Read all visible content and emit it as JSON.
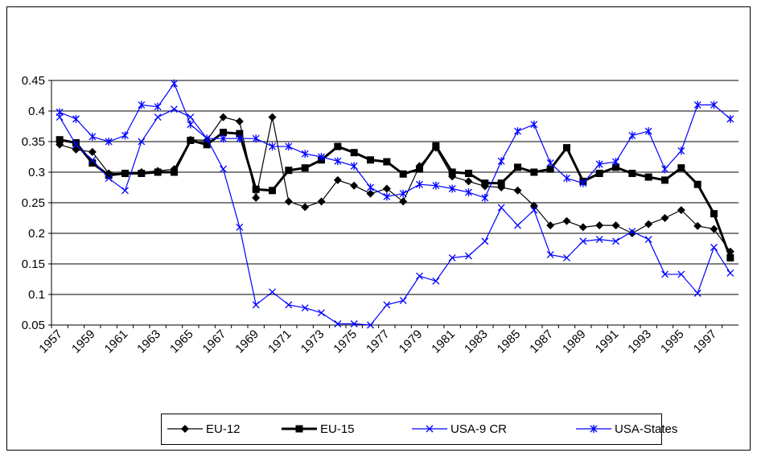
{
  "chart_data": {
    "type": "line",
    "categories": [
      "1957",
      null,
      "1959",
      null,
      "1961",
      null,
      "1963",
      null,
      "1965",
      null,
      "1967",
      null,
      "1969",
      null,
      "1971",
      null,
      "1973",
      null,
      "1975",
      null,
      "1977",
      null,
      "1979",
      null,
      "1981",
      null,
      "1983",
      null,
      "1985",
      null,
      "1987",
      null,
      "1989",
      null,
      "1991",
      null,
      "1993",
      null,
      "1995",
      null,
      "1997",
      null
    ],
    "series": [
      {
        "name": "EU-12",
        "color": "#000000",
        "marker": "diamond",
        "width": 1.2,
        "values": [
          0.345,
          0.337,
          0.333,
          0.298,
          0.298,
          0.3,
          0.302,
          0.305,
          0.353,
          0.352,
          0.39,
          0.383,
          0.258,
          0.39,
          0.252,
          0.243,
          0.252,
          0.287,
          0.278,
          0.265,
          0.273,
          0.252,
          0.31,
          0.34,
          0.293,
          0.285,
          0.277,
          0.275,
          0.27,
          0.245,
          0.213,
          0.22,
          0.21,
          0.213,
          0.213,
          0.2,
          0.215,
          0.225,
          0.238,
          0.212,
          0.207,
          0.17
        ]
      },
      {
        "name": "EU-15",
        "color": "#000000",
        "marker": "square",
        "width": 3,
        "values": [
          0.353,
          0.348,
          0.315,
          0.295,
          0.298,
          0.298,
          0.3,
          0.3,
          0.352,
          0.345,
          0.365,
          0.363,
          0.272,
          0.27,
          0.303,
          0.307,
          0.32,
          0.342,
          0.332,
          0.32,
          0.317,
          0.297,
          0.305,
          0.343,
          0.3,
          0.298,
          0.282,
          0.282,
          0.308,
          0.3,
          0.305,
          0.34,
          0.285,
          0.298,
          0.308,
          0.298,
          0.292,
          0.287,
          0.307,
          0.28,
          0.232,
          0.16
        ]
      },
      {
        "name": "USA-9 CR",
        "color": "#0000ff",
        "marker": "x",
        "width": 1.2,
        "values": [
          0.39,
          0.345,
          0.32,
          0.29,
          0.27,
          0.35,
          0.39,
          0.403,
          0.39,
          0.355,
          0.305,
          0.21,
          0.083,
          0.104,
          0.083,
          0.078,
          0.07,
          0.052,
          0.052,
          0.05,
          0.083,
          0.09,
          0.13,
          0.122,
          0.16,
          0.163,
          0.187,
          0.242,
          0.213,
          0.238,
          0.165,
          0.16,
          0.187,
          0.19,
          0.187,
          0.203,
          0.19,
          0.133,
          0.133,
          0.102,
          0.177,
          0.135
        ]
      },
      {
        "name": "USA-States",
        "color": "#0000ff",
        "marker": "asterisk",
        "width": 1.2,
        "values": [
          0.398,
          0.387,
          0.358,
          0.35,
          0.36,
          0.41,
          0.407,
          0.445,
          0.378,
          0.355,
          0.355,
          0.355,
          0.355,
          0.342,
          0.342,
          0.33,
          0.325,
          0.318,
          0.31,
          0.275,
          0.26,
          0.265,
          0.28,
          0.278,
          0.273,
          0.267,
          0.258,
          0.318,
          0.367,
          0.378,
          0.315,
          0.29,
          0.282,
          0.313,
          0.317,
          0.36,
          0.367,
          0.305,
          0.335,
          0.41,
          0.41,
          0.387
        ]
      }
    ],
    "ylim": [
      0.05,
      0.45
    ],
    "yticks": [
      0.05,
      0.1,
      0.15,
      0.2,
      0.25,
      0.3,
      0.35,
      0.4,
      0.45
    ],
    "grid": true,
    "legend": "bottom"
  }
}
